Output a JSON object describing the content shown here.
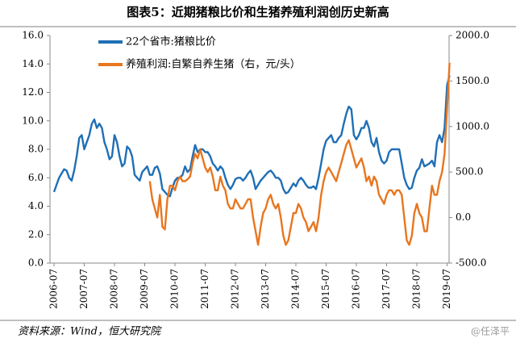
{
  "chart_data": {
    "type": "line",
    "title": "图表5：近期猪粮比价和生猪养殖利润创历史新高",
    "source": "资料来源：Wind，恒大研究院",
    "watermark": "@任泽平",
    "x": [
      "2006-07",
      "2006-08",
      "2006-09",
      "2006-10",
      "2006-11",
      "2006-12",
      "2007-01",
      "2007-02",
      "2007-03",
      "2007-04",
      "2007-05",
      "2007-06",
      "2007-07",
      "2007-08",
      "2007-09",
      "2007-10",
      "2007-11",
      "2007-12",
      "2008-01",
      "2008-02",
      "2008-03",
      "2008-04",
      "2008-05",
      "2008-06",
      "2008-07",
      "2008-08",
      "2008-09",
      "2008-10",
      "2008-11",
      "2008-12",
      "2009-01",
      "2009-02",
      "2009-03",
      "2009-04",
      "2009-05",
      "2009-06",
      "2009-07",
      "2009-08",
      "2009-09",
      "2009-10",
      "2009-11",
      "2009-12",
      "2010-01",
      "2010-02",
      "2010-03",
      "2010-04",
      "2010-05",
      "2010-06",
      "2010-07",
      "2010-08",
      "2010-09",
      "2010-10",
      "2010-11",
      "2010-12",
      "2011-01",
      "2011-02",
      "2011-03",
      "2011-04",
      "2011-05",
      "2011-06",
      "2011-07",
      "2011-08",
      "2011-09",
      "2011-10",
      "2011-11",
      "2011-12",
      "2012-01",
      "2012-02",
      "2012-03",
      "2012-04",
      "2012-05",
      "2012-06",
      "2012-07",
      "2012-08",
      "2012-09",
      "2012-10",
      "2012-11",
      "2012-12",
      "2013-01",
      "2013-02",
      "2013-03",
      "2013-04",
      "2013-05",
      "2013-06",
      "2013-07",
      "2013-08",
      "2013-09",
      "2013-10",
      "2013-11",
      "2013-12",
      "2014-01",
      "2014-02",
      "2014-03",
      "2014-04",
      "2014-05",
      "2014-06",
      "2014-07",
      "2014-08",
      "2014-09",
      "2014-10",
      "2014-11",
      "2014-12",
      "2015-01",
      "2015-02",
      "2015-03",
      "2015-04",
      "2015-05",
      "2015-06",
      "2015-07",
      "2015-08",
      "2015-09",
      "2015-10",
      "2015-11",
      "2015-12",
      "2016-01",
      "2016-02",
      "2016-03",
      "2016-04",
      "2016-05",
      "2016-06",
      "2016-07",
      "2016-08",
      "2016-09",
      "2016-10",
      "2016-11",
      "2016-12",
      "2017-01",
      "2017-02",
      "2017-03",
      "2017-04",
      "2017-05",
      "2017-06",
      "2017-07",
      "2017-08",
      "2017-09",
      "2017-10",
      "2017-11",
      "2017-12",
      "2018-01",
      "2018-02",
      "2018-03",
      "2018-04",
      "2018-05",
      "2018-06",
      "2018-07",
      "2018-08",
      "2018-09",
      "2018-10",
      "2018-11",
      "2018-12",
      "2019-01",
      "2019-02",
      "2019-03",
      "2019-04",
      "2019-05",
      "2019-06",
      "2019-07",
      "2019-08"
    ],
    "xticks": [
      "2006-07",
      "2007-07",
      "2008-07",
      "2009-07",
      "2010-07",
      "2011-07",
      "2012-07",
      "2013-07",
      "2014-07",
      "2015-07",
      "2016-07",
      "2017-07",
      "2018-07",
      "2019-07"
    ],
    "series": [
      {
        "name": "22个省市:猪粮比价",
        "color": "#1f6fb5",
        "axis": "y",
        "values": [
          5.0,
          5.5,
          6.0,
          6.3,
          6.6,
          6.5,
          6.0,
          5.8,
          6.5,
          7.5,
          8.8,
          9.0,
          8.0,
          8.5,
          9.0,
          9.8,
          10.1,
          9.5,
          9.8,
          9.5,
          8.5,
          8.0,
          7.3,
          7.5,
          9.0,
          8.5,
          7.5,
          6.8,
          7.0,
          8.2,
          8.0,
          7.5,
          6.2,
          6.0,
          5.8,
          6.4,
          6.6,
          6.8,
          6.2,
          6.2,
          6.7,
          6.8,
          6.3,
          5.2,
          5.0,
          4.8,
          4.7,
          5.3,
          5.8,
          6.0,
          6.0,
          6.2,
          6.8,
          6.4,
          6.6,
          7.5,
          8.3,
          7.8,
          8.0,
          8.0,
          7.8,
          7.8,
          7.5,
          7.0,
          6.8,
          6.5,
          6.8,
          6.6,
          6.0,
          5.5,
          5.2,
          5.5,
          5.9,
          6.0,
          6.0,
          5.8,
          6.0,
          6.3,
          6.5,
          6.0,
          5.2,
          5.5,
          5.8,
          6.0,
          6.2,
          6.4,
          6.5,
          6.3,
          6.0,
          6.0,
          5.8,
          5.2,
          4.9,
          5.0,
          5.3,
          5.6,
          5.4,
          5.8,
          6.0,
          5.8,
          5.5,
          5.3,
          5.3,
          5.4,
          5.2,
          6.0,
          7.0,
          8.0,
          8.6,
          8.8,
          9.0,
          8.5,
          8.5,
          8.8,
          9.0,
          9.8,
          10.5,
          11.0,
          10.8,
          9.0,
          8.7,
          9.0,
          9.5,
          9.5,
          10.0,
          9.5,
          8.5,
          8.2,
          8.8,
          7.8,
          7.2,
          7.0,
          7.2,
          7.8,
          8.0,
          8.0,
          8.0,
          8.0,
          7.0,
          6.0,
          5.5,
          5.2,
          5.3,
          6.0,
          6.5,
          6.7,
          7.3,
          6.8,
          6.9,
          7.0,
          7.2,
          6.8,
          8.5,
          9.0,
          8.5,
          9.5,
          12.5,
          13.2
        ]
      },
      {
        "name": "养殖利润:自繁自养生猪（右，元/头）",
        "color": "#e8761f",
        "axis": "y2",
        "values": [
          null,
          null,
          null,
          null,
          null,
          null,
          null,
          null,
          null,
          null,
          null,
          null,
          null,
          null,
          null,
          null,
          null,
          null,
          null,
          null,
          null,
          null,
          null,
          null,
          null,
          null,
          null,
          null,
          null,
          null,
          null,
          null,
          null,
          null,
          null,
          null,
          null,
          null,
          400,
          200,
          100,
          0,
          250,
          -100,
          -130,
          200,
          350,
          350,
          300,
          400,
          450,
          400,
          400,
          420,
          450,
          600,
          700,
          650,
          750,
          650,
          550,
          500,
          550,
          450,
          300,
          300,
          450,
          350,
          300,
          150,
          100,
          100,
          200,
          150,
          100,
          100,
          150,
          200,
          200,
          0,
          -150,
          -300,
          -100,
          50,
          100,
          200,
          250,
          150,
          100,
          150,
          0,
          -200,
          -300,
          -250,
          -100,
          50,
          50,
          150,
          100,
          0,
          -50,
          -150,
          -100,
          -50,
          -150,
          0,
          250,
          400,
          500,
          550,
          500,
          450,
          400,
          500,
          600,
          700,
          800,
          850,
          750,
          650,
          550,
          600,
          650,
          550,
          400,
          450,
          350,
          450,
          400,
          250,
          200,
          150,
          250,
          300,
          300,
          250,
          300,
          300,
          250,
          0,
          -250,
          -300,
          -200,
          50,
          150,
          50,
          0,
          -150,
          -150,
          100,
          350,
          250,
          250,
          400,
          500,
          700,
          1200,
          1700
        ]
      }
    ],
    "ylim": [
      0,
      16
    ],
    "yticks": [
      {
        "value": 0,
        "label": "0.0"
      },
      {
        "value": 2,
        "label": "2.0"
      },
      {
        "value": 4,
        "label": "4.0"
      },
      {
        "value": 6,
        "label": "6.0"
      },
      {
        "value": 8,
        "label": "8.0"
      },
      {
        "value": 10,
        "label": "10.0"
      },
      {
        "value": 12,
        "label": "12.0"
      },
      {
        "value": 14,
        "label": "14.0"
      },
      {
        "value": 16,
        "label": "16.0"
      }
    ],
    "y2lim": [
      -500,
      2000
    ],
    "y2ticks": [
      {
        "value": -500,
        "label": "-500.0"
      },
      {
        "value": 0,
        "label": "0.0"
      },
      {
        "value": 500,
        "label": "500.0"
      },
      {
        "value": 1000,
        "label": "1000.0"
      },
      {
        "value": 1500,
        "label": "1500.0"
      },
      {
        "value": 2000,
        "label": "2000.0"
      }
    ],
    "legend": "upper left"
  }
}
